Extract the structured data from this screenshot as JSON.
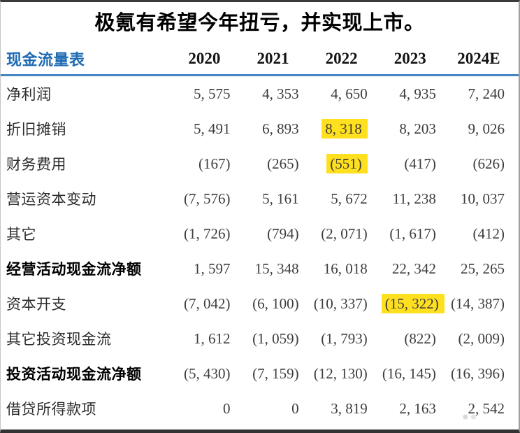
{
  "title": "极氪有希望今年扭亏，并实现上市。",
  "table": {
    "name": "现金流量表",
    "years": [
      "2020",
      "2021",
      "2022",
      "2023",
      "2024E"
    ],
    "rows": [
      {
        "label": "净利润",
        "bold": false,
        "values": [
          "5, 575",
          "4, 353",
          "4, 650",
          "4, 935",
          "7, 240"
        ],
        "highlights": []
      },
      {
        "label": "折旧摊销",
        "bold": false,
        "values": [
          "5, 491",
          "6, 893",
          "8, 318",
          "8, 203",
          "9, 026"
        ],
        "highlights": [
          2
        ]
      },
      {
        "label": "财务费用",
        "bold": false,
        "values": [
          "(167)",
          "(265)",
          "(551)",
          "(417)",
          "(626)"
        ],
        "highlights": [
          2
        ]
      },
      {
        "label": "营运资本变动",
        "bold": false,
        "values": [
          "(7, 576)",
          "5, 161",
          "5, 672",
          "11, 238",
          "10, 037"
        ],
        "highlights": []
      },
      {
        "label": "其它",
        "bold": false,
        "values": [
          "(1, 726)",
          "(794)",
          "(2, 071)",
          "(1, 617)",
          "(412)"
        ],
        "highlights": []
      },
      {
        "label": "经营活动现金流净额",
        "bold": true,
        "values": [
          "1, 597",
          "15, 348",
          "16, 018",
          "22, 342",
          "25, 265"
        ],
        "highlights": []
      },
      {
        "label": "资本开支",
        "bold": false,
        "values": [
          "(7, 042)",
          "(6, 100)",
          "(10, 337)",
          "(15, 322)",
          "(14, 387)"
        ],
        "highlights": [
          3
        ]
      },
      {
        "label": "其它投资现金流",
        "bold": false,
        "values": [
          "1, 612",
          "(1, 059)",
          "(1, 793)",
          "(822)",
          "(2, 009)"
        ],
        "highlights": []
      },
      {
        "label": "投资活动现金流净额",
        "bold": true,
        "values": [
          "(5, 430)",
          "(7, 159)",
          "(12, 130)",
          "(16, 145)",
          "(16, 396)"
        ],
        "highlights": []
      },
      {
        "label": "借贷所得款项",
        "bold": false,
        "values": [
          "0",
          "0",
          "3, 819",
          "2, 163",
          "2, 542"
        ],
        "highlights": []
      }
    ]
  },
  "colors": {
    "header_blue": "#1e6bb4",
    "rule_blue": "#4585c4",
    "highlight_yellow": "#ffe01e",
    "number_text": "#3c3c3c"
  }
}
